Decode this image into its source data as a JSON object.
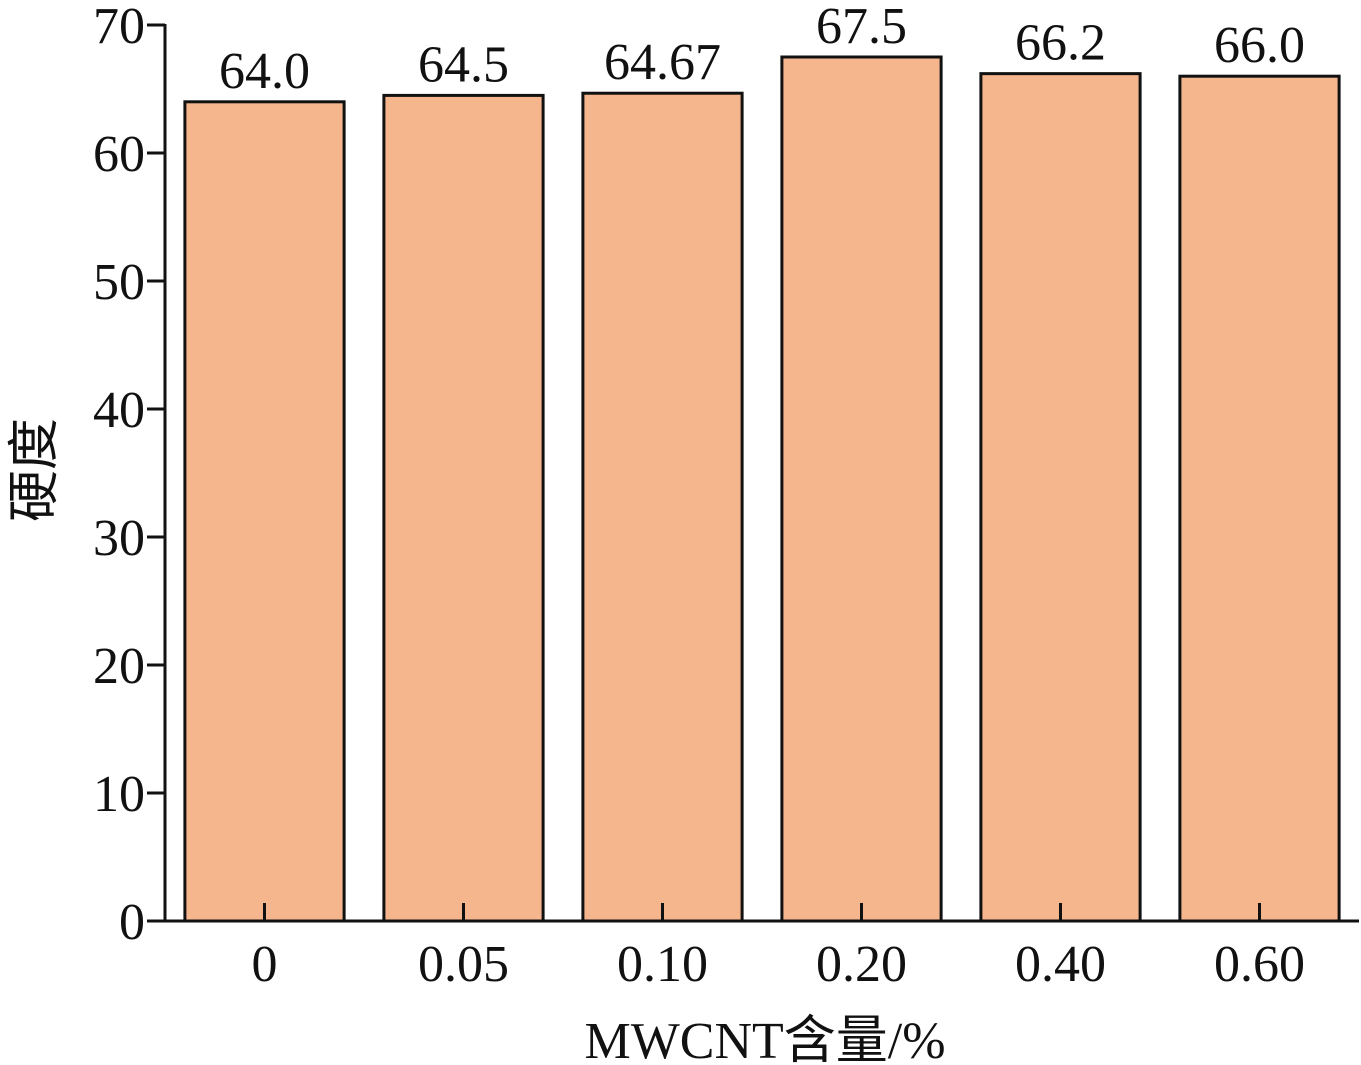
{
  "chart_data": {
    "type": "bar",
    "x_label": "MWCNT含量/%",
    "y_label": "硬度",
    "categories": [
      "0",
      "0.05",
      "0.10",
      "0.20",
      "0.40",
      "0.60"
    ],
    "values": [
      64,
      64.5,
      64.67,
      67.5,
      66.2,
      66
    ],
    "value_labels": [
      "64.0",
      "64.5",
      "64.67",
      "67.5",
      "66.2",
      "66.0"
    ],
    "color": "#f5b68e",
    "ylim": [
      0,
      70
    ],
    "yticks": [
      0,
      10,
      20,
      30,
      40,
      50,
      60,
      70
    ],
    "grid": false
  }
}
